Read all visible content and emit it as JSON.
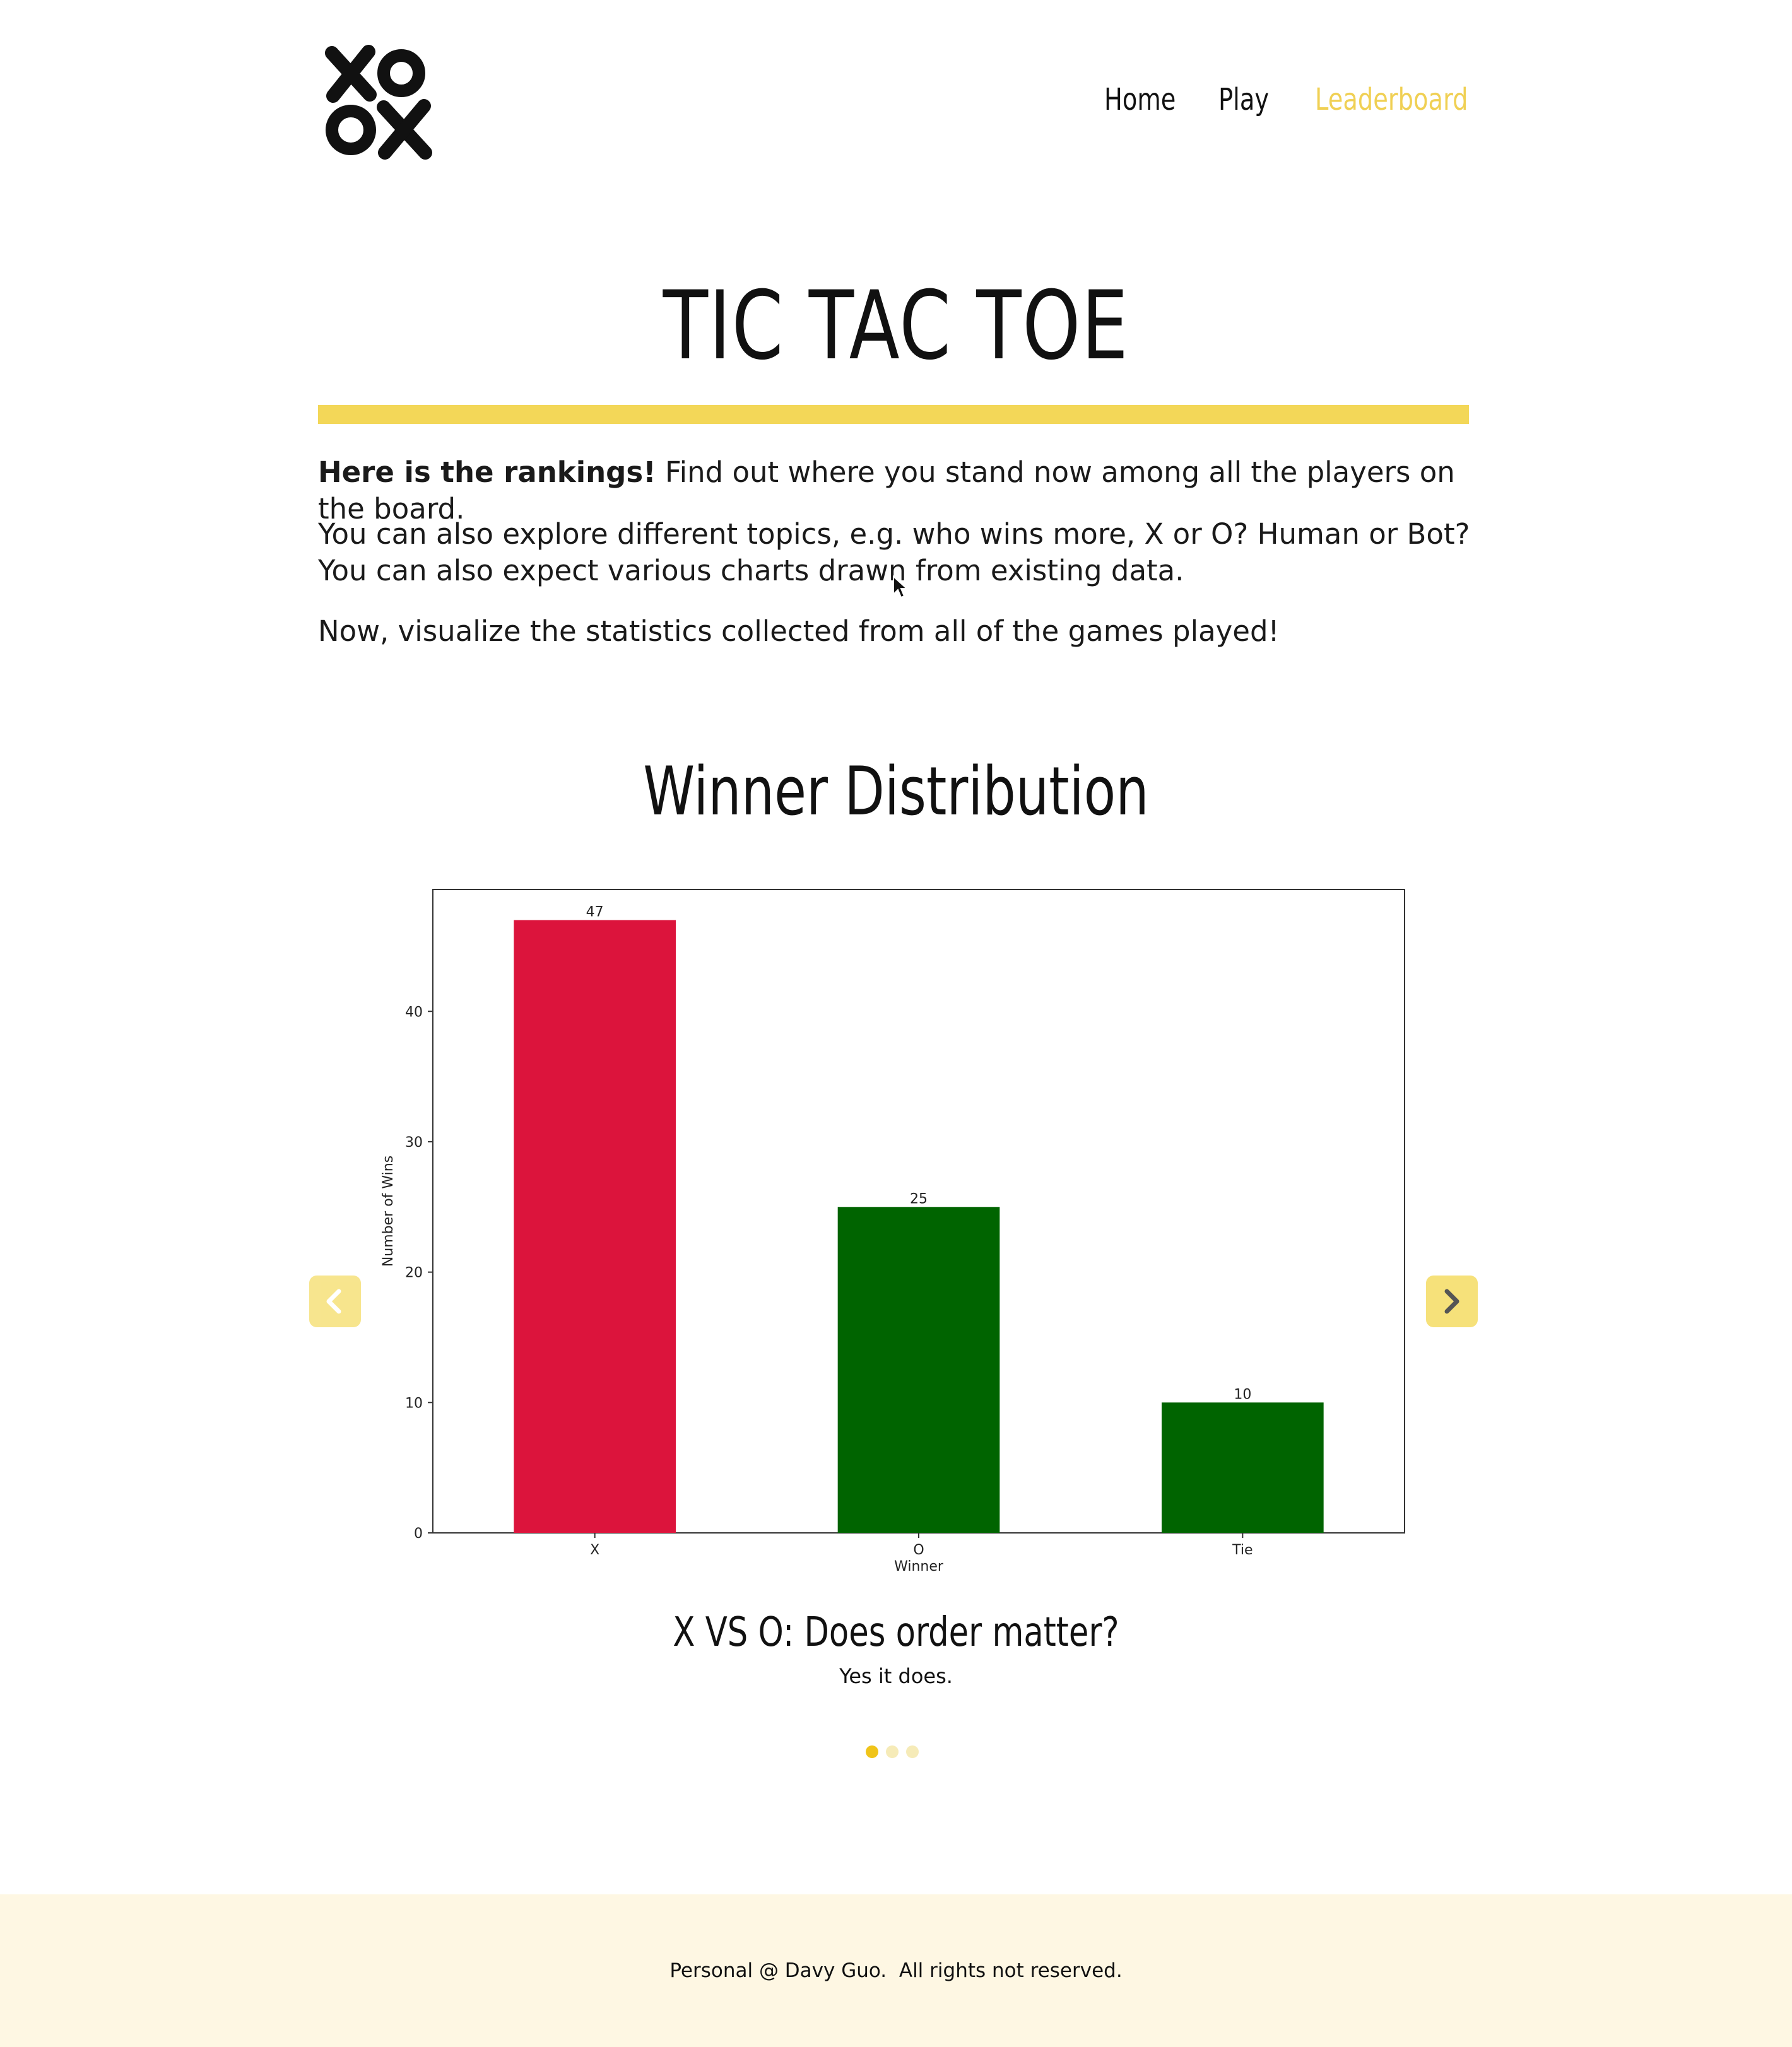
{
  "nav": {
    "home": "Home",
    "play": "Play",
    "leaderboard": "Leaderboard"
  },
  "header": {
    "logo_icon": "xoox-brush-logo-icon",
    "title": "TIC TAC TOE"
  },
  "intro": {
    "lead_bold": "Here is the rankings!",
    "lead_rest": "Find out where you stand now among all the players on the board.",
    "para2": "You can also explore different topics, e.g. who wins more, X or O? Human or Bot? You can also expect various charts drawn from existing data.",
    "para3": "Now, visualize the statistics collected from all of the games played!"
  },
  "section": {
    "heading": "Winner Distribution"
  },
  "carousel": {
    "prev_icon": "chevron-left-icon",
    "next_icon": "chevron-right-icon",
    "slide_title": "X VS O: Does order matter?",
    "slide_caption": "Yes it does.",
    "dot_count": 3,
    "active_index": 0
  },
  "chart_data": {
    "type": "bar",
    "categories": [
      "X",
      "O",
      "Tie"
    ],
    "values": [
      47,
      25,
      10
    ],
    "colors": [
      "#dc143c",
      "#006400",
      "#006400"
    ],
    "xlabel": "Winner",
    "ylabel": "Number of Wins",
    "ylim": [
      0,
      49.35
    ],
    "yticks": [
      0,
      10,
      20,
      30,
      40
    ],
    "grid": false
  },
  "footer": {
    "text": "Personal @ Davy Guo.  All rights not reserved."
  }
}
